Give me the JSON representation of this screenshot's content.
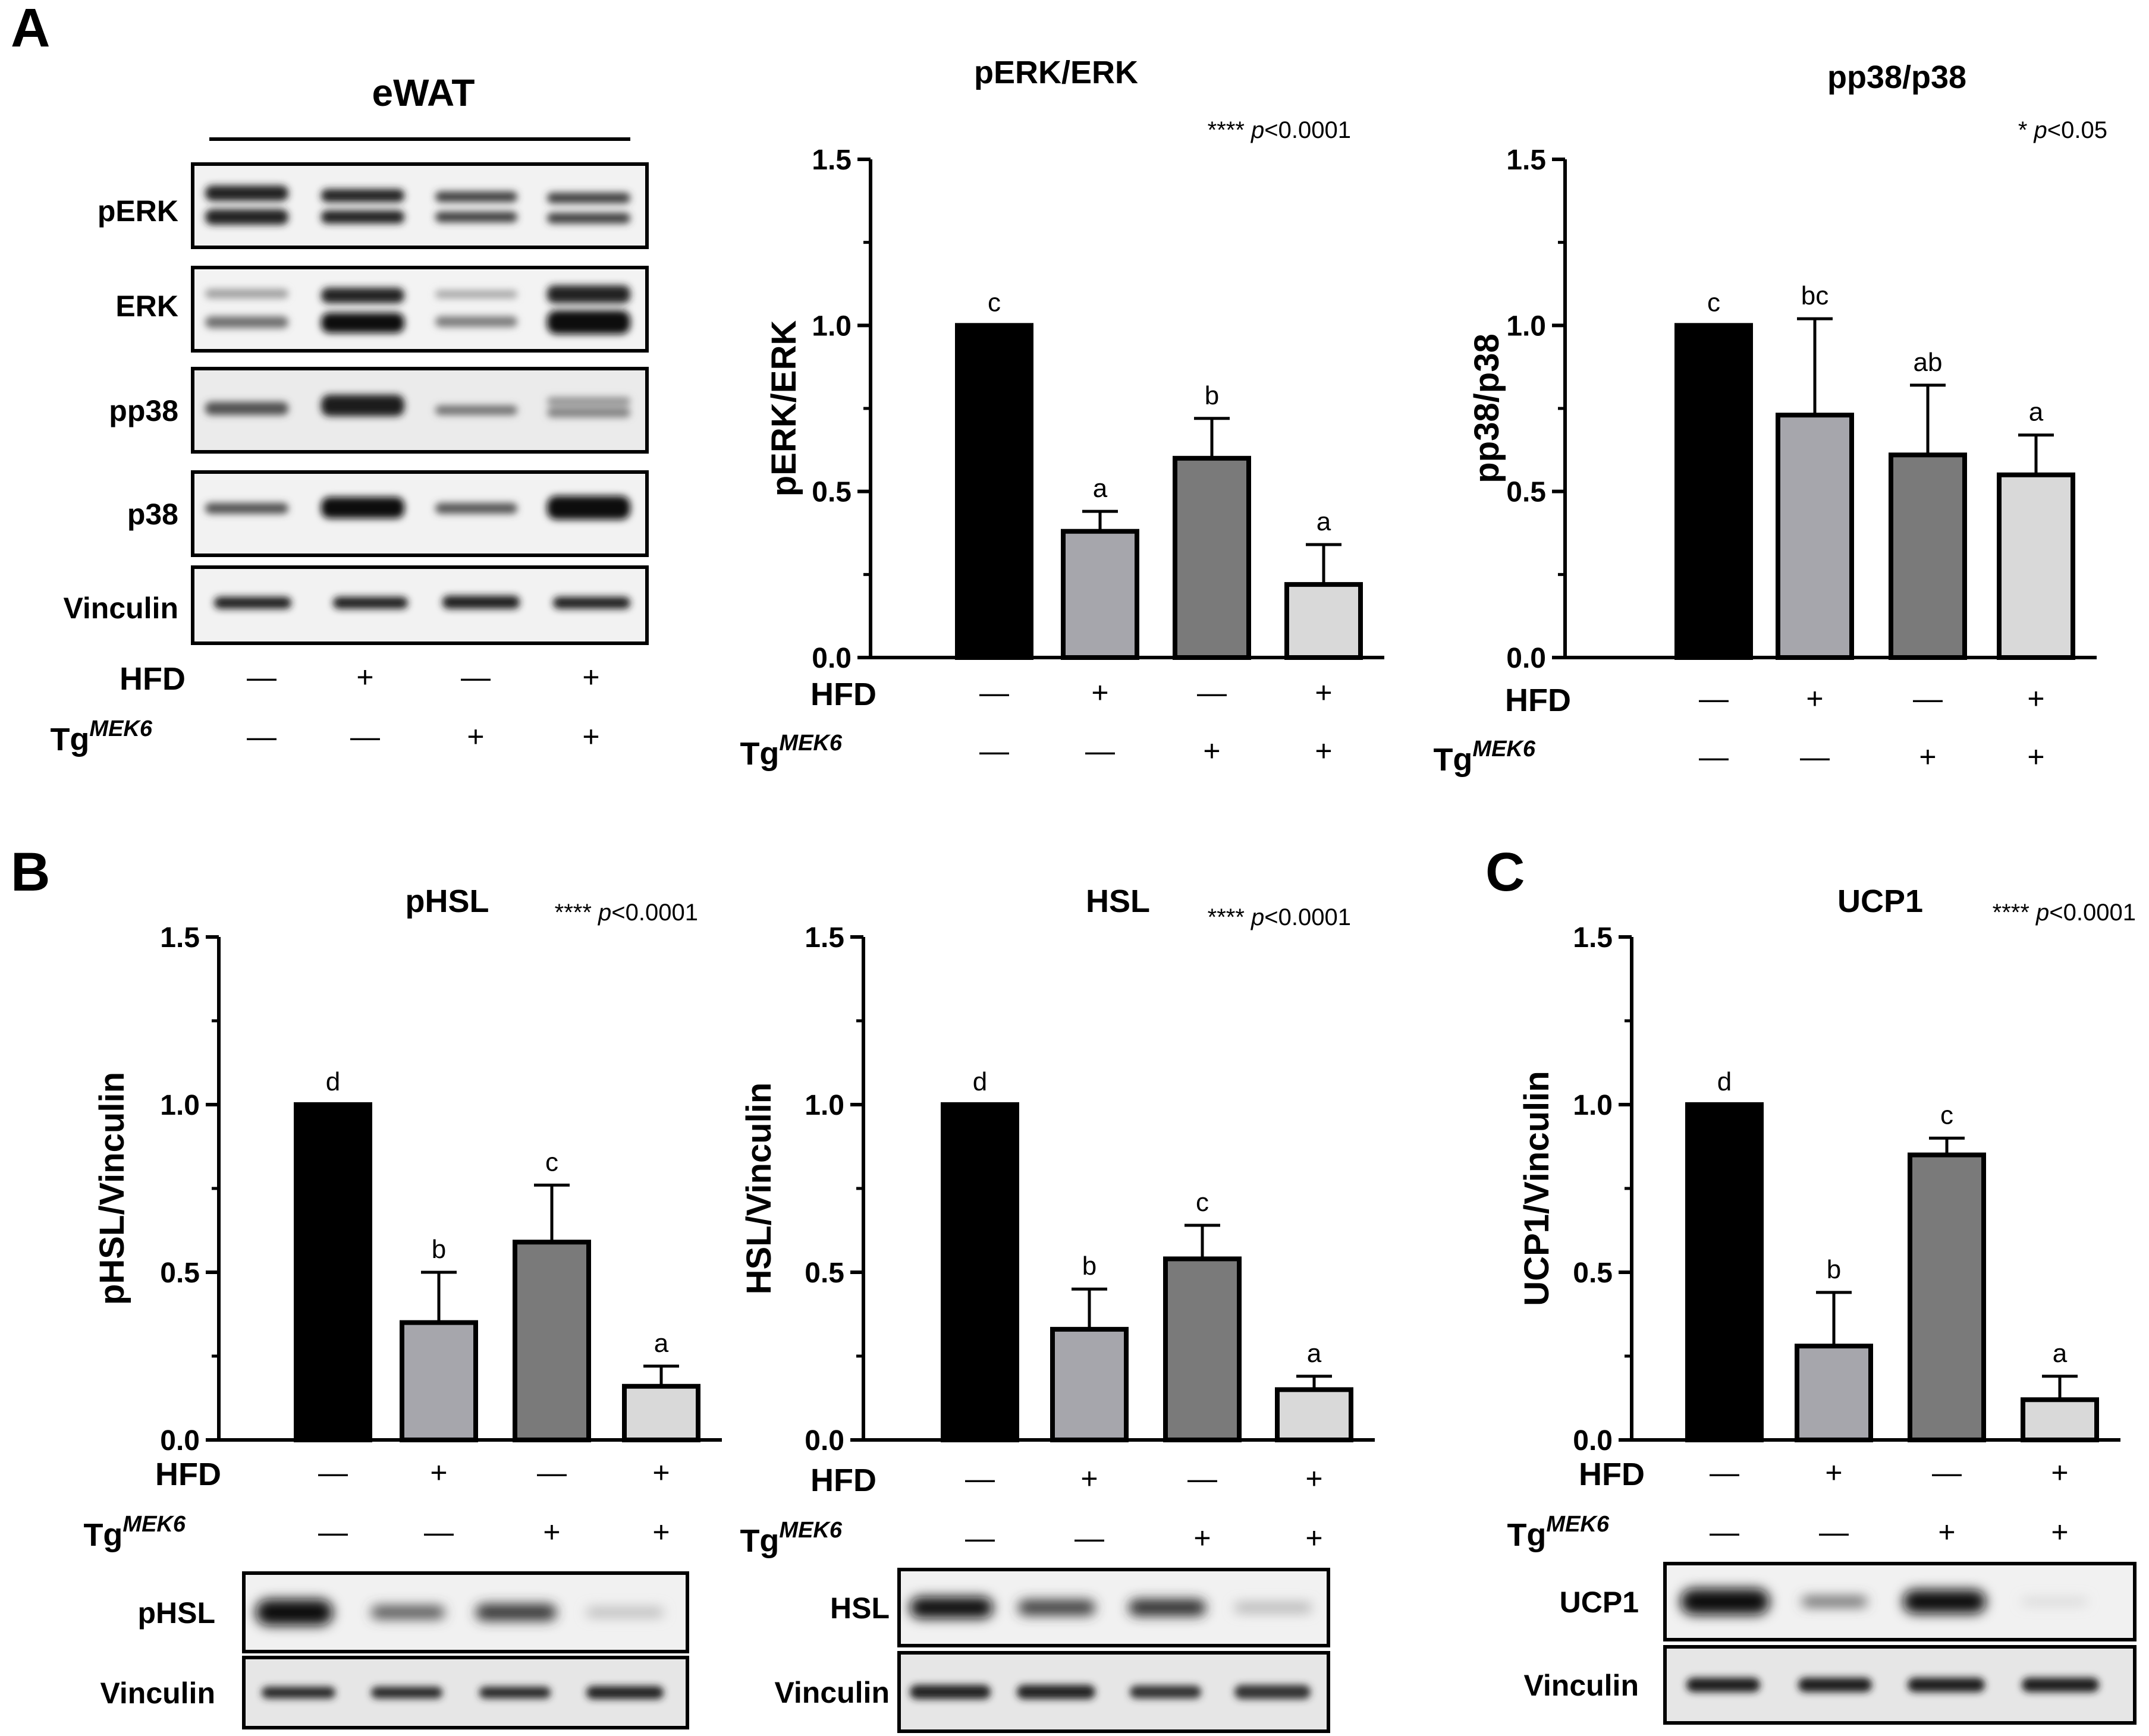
{
  "panels": [
    "A",
    "B",
    "C"
  ],
  "blot_A": {
    "title": "eWAT",
    "bands": [
      "pERK",
      "ERK",
      "pp38",
      "p38",
      "Vinculin"
    ]
  },
  "conditions": {
    "hfd_label": "HFD",
    "tg_label": "Tg",
    "tg_sup": "MEK6",
    "hfd": [
      "—",
      "+",
      "—",
      "+"
    ],
    "tg": [
      "—",
      "—",
      "+",
      "+"
    ]
  },
  "chart_data": [
    {
      "type": "bar",
      "id": "perk",
      "title": "pERK/ERK",
      "ylabel": "pERK/ERK",
      "ylim": [
        0,
        1.5
      ],
      "yticks": [
        "0.0",
        "0.5",
        "1.0",
        "1.5"
      ],
      "stat": {
        "stars": "****",
        "p": "p",
        "rest": "<0.0001"
      },
      "values": [
        1.0,
        0.38,
        0.6,
        0.22
      ],
      "errors": [
        0,
        0.06,
        0.12,
        0.12
      ],
      "letters": [
        "c",
        "a",
        "b",
        "a"
      ],
      "colors": [
        "#000000",
        "#a6a6ac",
        "#7a7a7a",
        "#d9d9d9"
      ],
      "blot": []
    },
    {
      "type": "bar",
      "id": "pp38",
      "title": "pp38/p38",
      "ylabel": "pp38/p38",
      "ylim": [
        0,
        1.5
      ],
      "yticks": [
        "0.0",
        "0.5",
        "1.0",
        "1.5"
      ],
      "stat": {
        "stars": "*",
        "p": "p",
        "rest": "<0.05"
      },
      "values": [
        1.0,
        0.73,
        0.61,
        0.55
      ],
      "errors": [
        0,
        0.29,
        0.21,
        0.12
      ],
      "letters": [
        "c",
        "bc",
        "ab",
        "a"
      ],
      "colors": [
        "#000000",
        "#a6a6ac",
        "#7a7a7a",
        "#d9d9d9"
      ],
      "blot": []
    },
    {
      "type": "bar",
      "id": "phsl",
      "title": "pHSL",
      "ylabel": "pHSL/Vinculin",
      "ylim": [
        0,
        1.5
      ],
      "yticks": [
        "0.0",
        "0.5",
        "1.0",
        "1.5"
      ],
      "stat": {
        "stars": "****",
        "p": "p",
        "rest": "<0.0001"
      },
      "values": [
        1.0,
        0.35,
        0.59,
        0.16
      ],
      "errors": [
        0,
        0.15,
        0.17,
        0.06
      ],
      "letters": [
        "d",
        "b",
        "c",
        "a"
      ],
      "colors": [
        "#000000",
        "#a6a6ac",
        "#7a7a7a",
        "#d9d9d9"
      ],
      "blot": [
        "pHSL",
        "Vinculin"
      ]
    },
    {
      "type": "bar",
      "id": "hsl",
      "title": "HSL",
      "ylabel": "HSL/Vinculin",
      "ylim": [
        0,
        1.5
      ],
      "yticks": [
        "0.0",
        "0.5",
        "1.0",
        "1.5"
      ],
      "stat": {
        "stars": "****",
        "p": "p",
        "rest": "<0.0001"
      },
      "values": [
        1.0,
        0.33,
        0.54,
        0.15
      ],
      "errors": [
        0,
        0.12,
        0.1,
        0.04
      ],
      "letters": [
        "d",
        "b",
        "c",
        "a"
      ],
      "colors": [
        "#000000",
        "#a6a6ac",
        "#7a7a7a",
        "#d9d9d9"
      ],
      "blot": [
        "HSL",
        "Vinculin"
      ]
    },
    {
      "type": "bar",
      "id": "ucp1",
      "title": "UCP1",
      "ylabel": "UCP1/Vinculin",
      "ylim": [
        0,
        1.5
      ],
      "yticks": [
        "0.0",
        "0.5",
        "1.0",
        "1.5"
      ],
      "stat": {
        "stars": "****",
        "p": "p",
        "rest": "<0.0001"
      },
      "values": [
        1.0,
        0.28,
        0.85,
        0.12
      ],
      "errors": [
        0,
        0.16,
        0.05,
        0.07
      ],
      "letters": [
        "d",
        "b",
        "c",
        "a"
      ],
      "colors": [
        "#000000",
        "#a6a6ac",
        "#7a7a7a",
        "#d9d9d9"
      ],
      "blot": [
        "UCP1",
        "Vinculin"
      ]
    }
  ]
}
